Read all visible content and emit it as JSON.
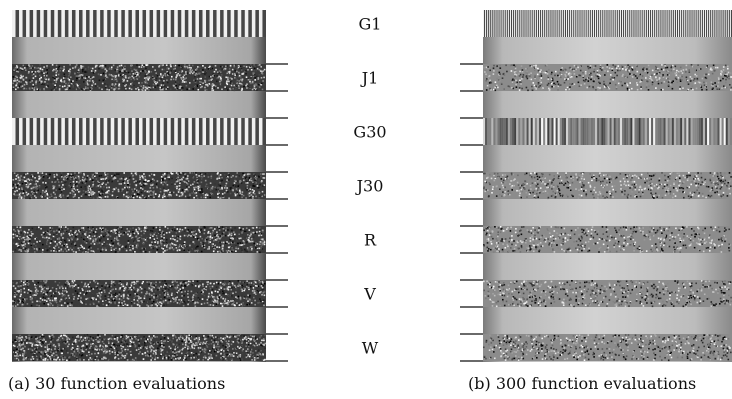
{
  "figure": {
    "row_labels": [
      "G1",
      "J1",
      "G30",
      "J30",
      "R",
      "V",
      "W"
    ],
    "captions": {
      "a": "(a) 30 function evaluations",
      "b": "(b) 300 function evaluations"
    }
  },
  "colors": {
    "tick": "#111111",
    "label": "#111111"
  }
}
